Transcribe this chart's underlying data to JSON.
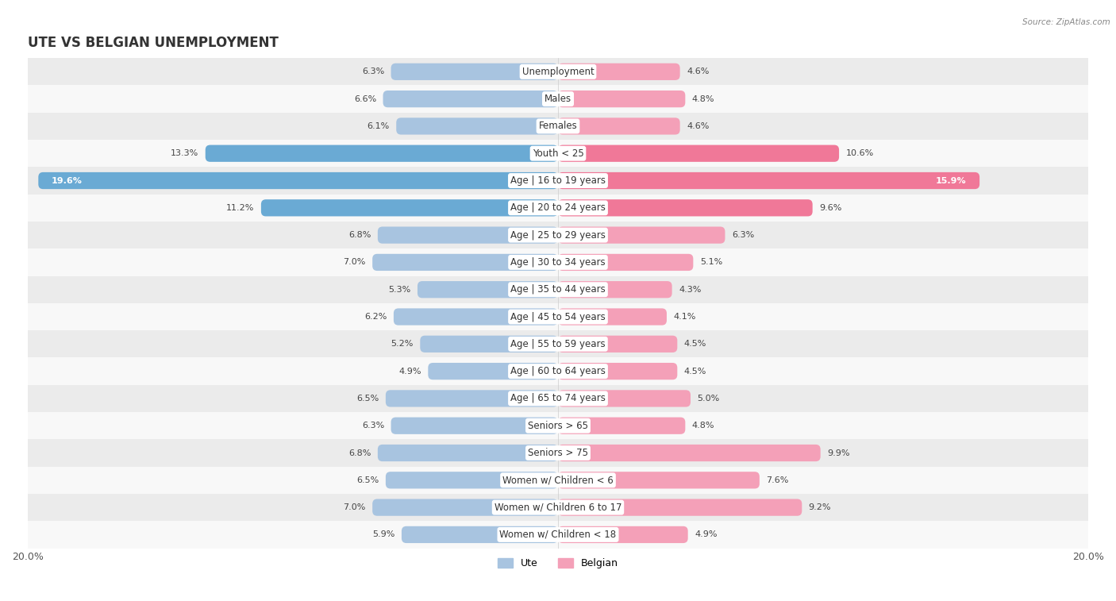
{
  "title": "UTE VS BELGIAN UNEMPLOYMENT",
  "source": "Source: ZipAtlas.com",
  "categories": [
    "Unemployment",
    "Males",
    "Females",
    "Youth < 25",
    "Age | 16 to 19 years",
    "Age | 20 to 24 years",
    "Age | 25 to 29 years",
    "Age | 30 to 34 years",
    "Age | 35 to 44 years",
    "Age | 45 to 54 years",
    "Age | 55 to 59 years",
    "Age | 60 to 64 years",
    "Age | 65 to 74 years",
    "Seniors > 65",
    "Seniors > 75",
    "Women w/ Children < 6",
    "Women w/ Children 6 to 17",
    "Women w/ Children < 18"
  ],
  "ute_values": [
    6.3,
    6.6,
    6.1,
    13.3,
    19.6,
    11.2,
    6.8,
    7.0,
    5.3,
    6.2,
    5.2,
    4.9,
    6.5,
    6.3,
    6.8,
    6.5,
    7.0,
    5.9
  ],
  "belgian_values": [
    4.6,
    4.8,
    4.6,
    10.6,
    15.9,
    9.6,
    6.3,
    5.1,
    4.3,
    4.1,
    4.5,
    4.5,
    5.0,
    4.8,
    9.9,
    7.6,
    9.2,
    4.9
  ],
  "ute_color": "#a8c4e0",
  "belgian_color": "#f4a0b8",
  "ute_highlight_color": "#6aaad4",
  "belgian_highlight_color": "#f07898",
  "highlight_rows": [
    3,
    4,
    5
  ],
  "axis_limit": 20.0,
  "bg_color_odd": "#ebebeb",
  "bg_color_even": "#f8f8f8",
  "bar_height": 0.62,
  "label_fontsize": 8.0,
  "category_fontsize": 8.5,
  "title_fontsize": 12,
  "legend_fontsize": 9
}
